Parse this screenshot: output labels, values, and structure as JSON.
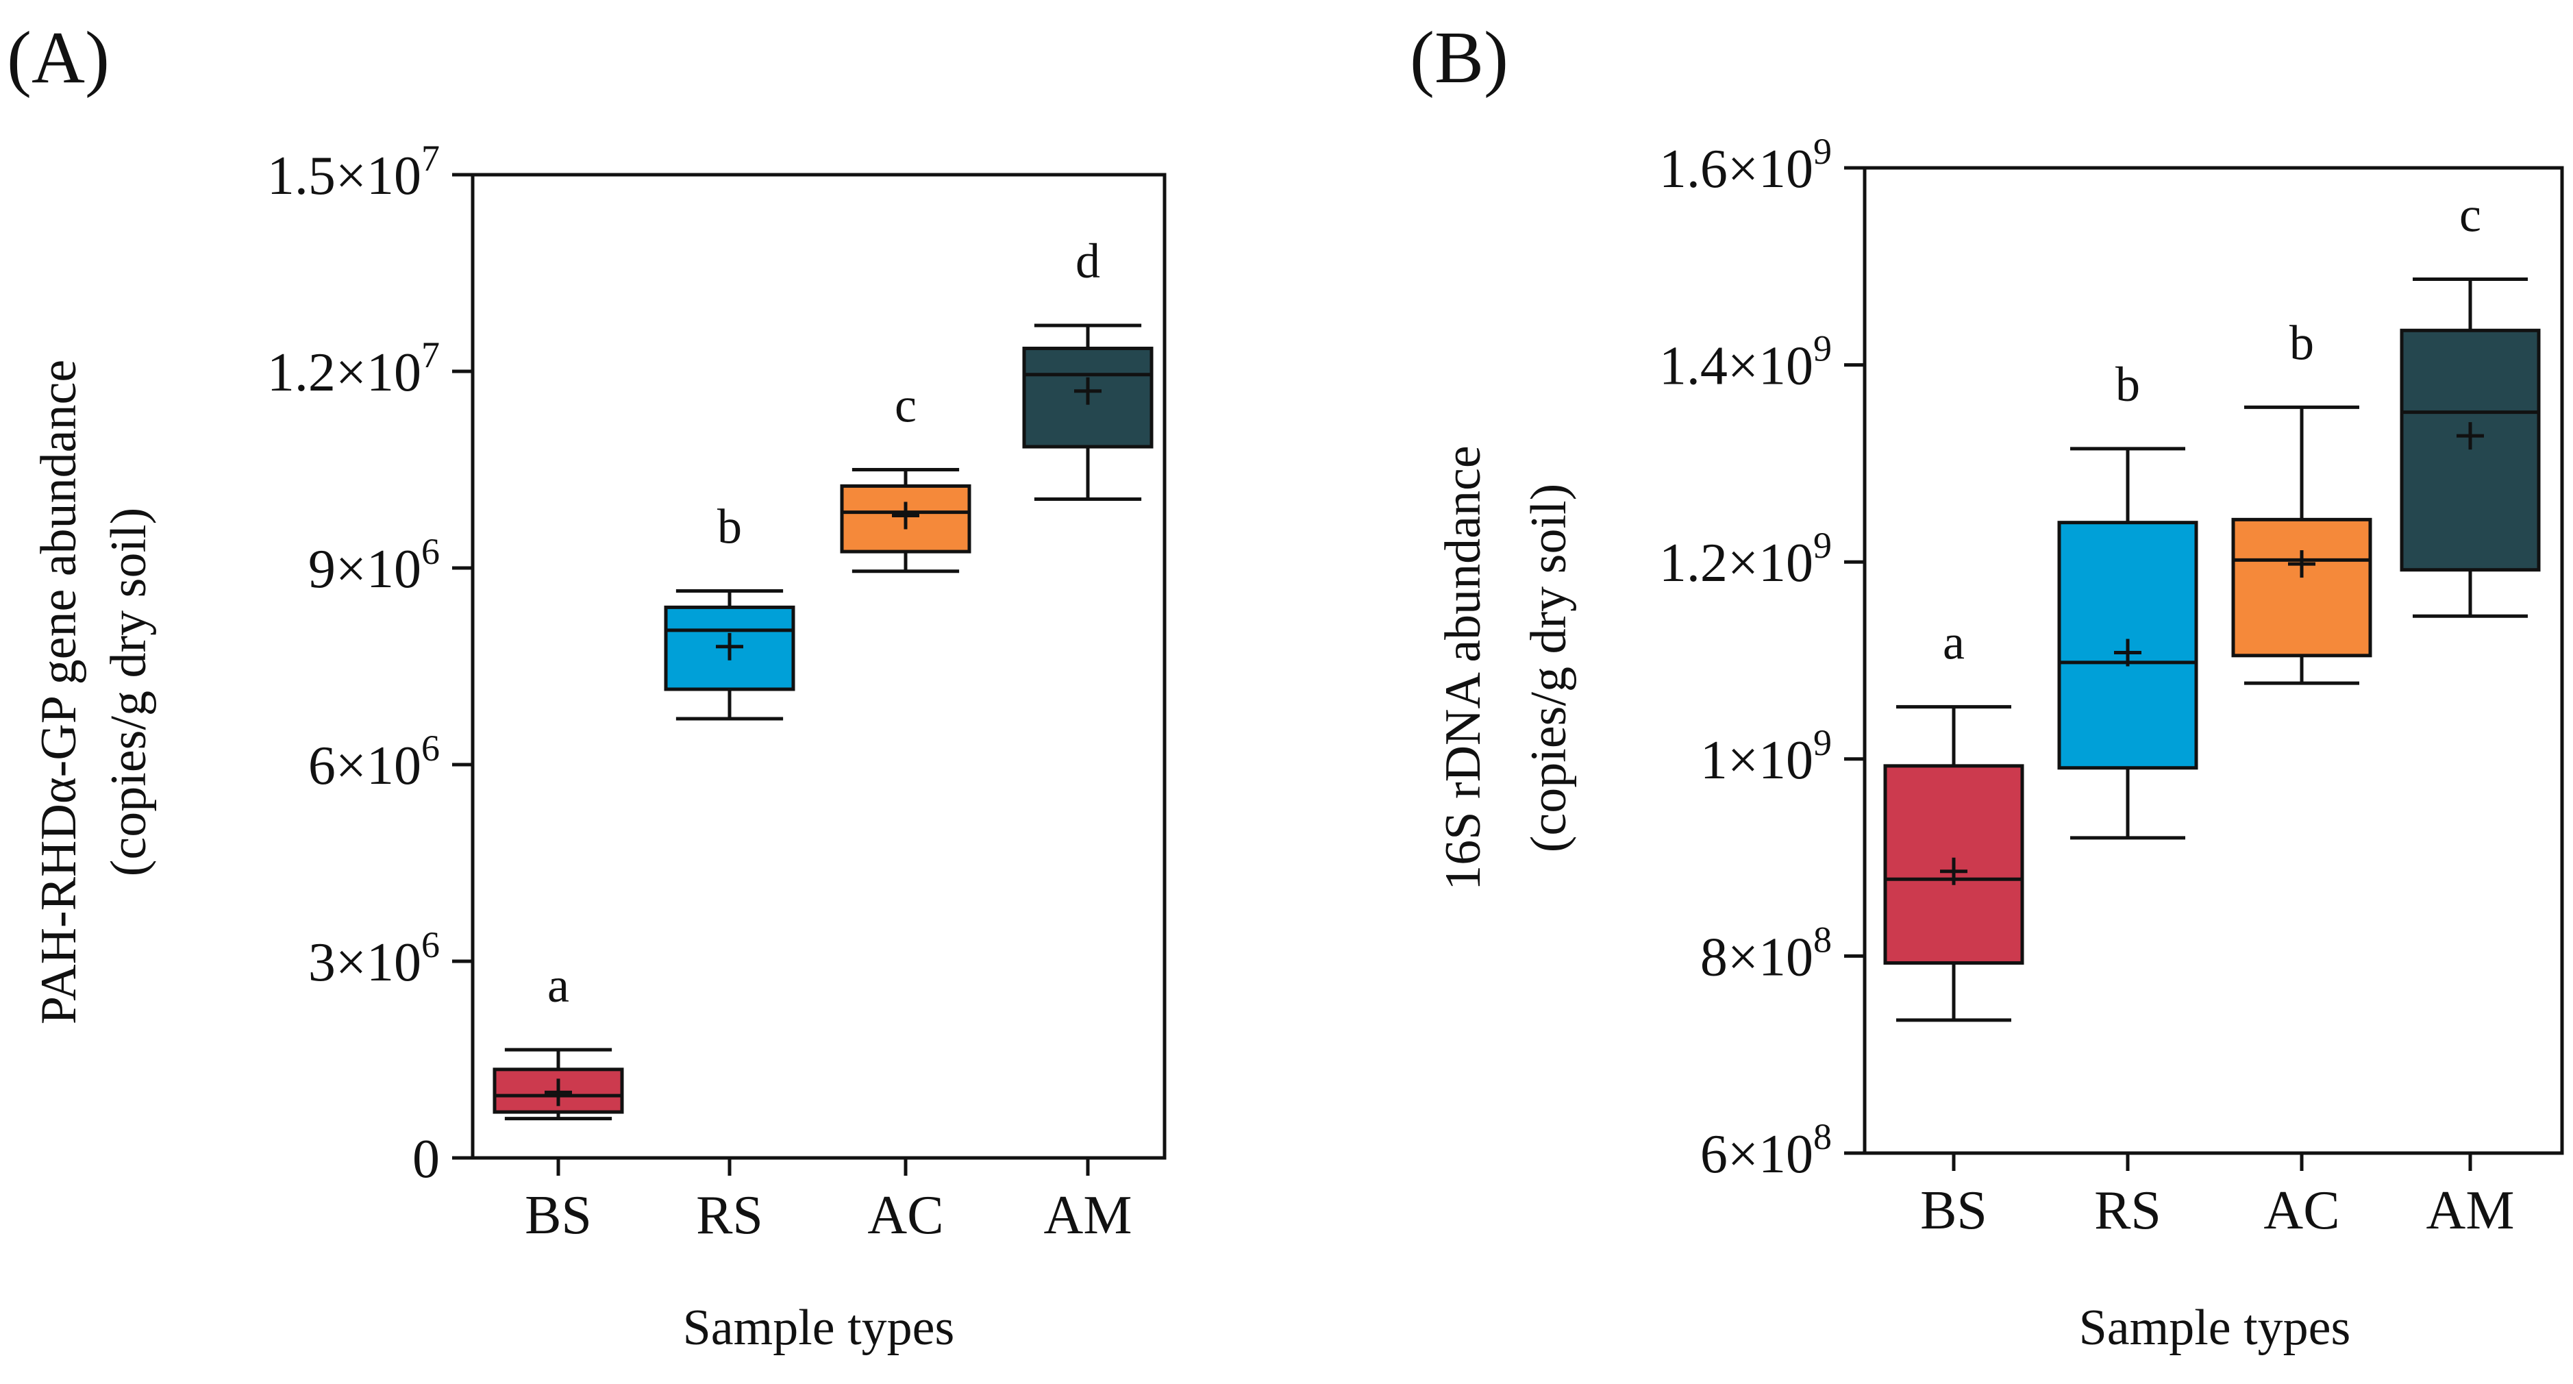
{
  "figure": {
    "panels": [
      "(A)",
      "(B)"
    ]
  },
  "colors": {
    "BS": "#CC3A4E",
    "RS": "#00A0D8",
    "AC": "#F5893A",
    "AM": "#25474F",
    "axis": "#111111"
  },
  "chart_data": [
    {
      "type": "box",
      "panel": "(A)",
      "title": "",
      "xlabel": "Sample types",
      "ylabel_lines": [
        "PAH-RHDα-GP gene abundance",
        "(copies/g dry soil)"
      ],
      "categories": [
        "BS",
        "RS",
        "AC",
        "AM"
      ],
      "ylim": [
        0,
        15000000
      ],
      "yticks": [
        {
          "value": 0,
          "base": "0",
          "exp": ""
        },
        {
          "value": 3000000,
          "base": "3×10",
          "exp": "6"
        },
        {
          "value": 6000000,
          "base": "6×10",
          "exp": "6"
        },
        {
          "value": 9000000,
          "base": "9×10",
          "exp": "6"
        },
        {
          "value": 12000000,
          "base": "1.2×10",
          "exp": "7"
        },
        {
          "value": 15000000,
          "base": "1.5×10",
          "exp": "7"
        }
      ],
      "boxes": [
        {
          "category": "BS",
          "min": 600000,
          "q1": 700000,
          "median": 950000,
          "q3": 1350000,
          "max": 1650000,
          "mean": 1000000,
          "letter": "a"
        },
        {
          "category": "RS",
          "min": 6700000,
          "q1": 7150000,
          "median": 8050000,
          "q3": 8400000,
          "max": 8650000,
          "mean": 7800000,
          "letter": "b"
        },
        {
          "category": "AC",
          "min": 8950000,
          "q1": 9250000,
          "median": 9850000,
          "q3": 10250000,
          "max": 10500000,
          "mean": 9800000,
          "letter": "c"
        },
        {
          "category": "AM",
          "min": 10050000,
          "q1": 10850000,
          "median": 11950000,
          "q3": 12350000,
          "max": 12700000,
          "mean": 11700000,
          "letter": "d"
        }
      ]
    },
    {
      "type": "box",
      "panel": "(B)",
      "title": "",
      "xlabel": "Sample types",
      "ylabel_lines": [
        "16S rDNA abundance",
        "(copies/g dry soil)"
      ],
      "categories": [
        "BS",
        "RS",
        "AC",
        "AM"
      ],
      "ylim": [
        600000000,
        1600000000
      ],
      "yticks": [
        {
          "value": 600000000,
          "base": "6×10",
          "exp": "8"
        },
        {
          "value": 800000000,
          "base": "8×10",
          "exp": "8"
        },
        {
          "value": 1000000000,
          "base": "1×10",
          "exp": "9"
        },
        {
          "value": 1200000000,
          "base": "1.2×10",
          "exp": "9"
        },
        {
          "value": 1400000000,
          "base": "1.4×10",
          "exp": "9"
        },
        {
          "value": 1600000000,
          "base": "1.6×10",
          "exp": "9"
        }
      ],
      "boxes": [
        {
          "category": "BS",
          "min": 735000000,
          "q1": 793000000,
          "median": 878000000,
          "q3": 993000000,
          "max": 1053000000,
          "mean": 886000000,
          "letter": "a"
        },
        {
          "category": "RS",
          "min": 920000000,
          "q1": 991000000,
          "median": 1098000000,
          "q3": 1240000000,
          "max": 1315000000,
          "mean": 1108000000,
          "letter": "b"
        },
        {
          "category": "AC",
          "min": 1077000000,
          "q1": 1105000000,
          "median": 1202000000,
          "q3": 1243000000,
          "max": 1357000000,
          "mean": 1198000000,
          "letter": "b"
        },
        {
          "category": "AM",
          "min": 1145000000,
          "q1": 1192000000,
          "median": 1352000000,
          "q3": 1435000000,
          "max": 1487000000,
          "mean": 1328000000,
          "letter": "c"
        }
      ]
    }
  ]
}
